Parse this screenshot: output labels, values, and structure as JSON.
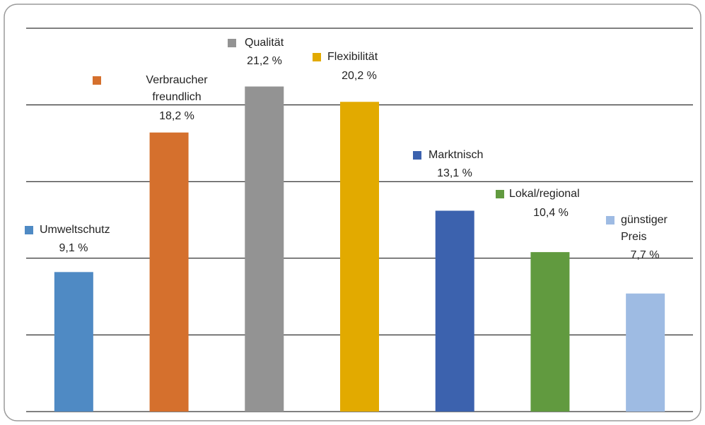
{
  "chart_data": {
    "type": "bar",
    "categories": [
      "Umweltschutz",
      "Verbraucher\nfreundlich",
      "Qualität",
      "Flexibilität",
      "Marktnisch",
      "Lokal/regional",
      "günstiger\nPreis"
    ],
    "values": [
      9.1,
      18.2,
      21.2,
      20.2,
      13.1,
      10.4,
      7.7
    ],
    "value_labels": [
      "9,1 %",
      "18,2 %",
      "21,2 %",
      "20,2 %",
      "13,1 %",
      "10,4 %",
      "7,7 %"
    ],
    "colors": [
      "#4f8ac4",
      "#d5702d",
      "#939393",
      "#e2aa00",
      "#3c62ae",
      "#619a3f",
      "#9ebbe3"
    ],
    "ylim": [
      0,
      25
    ],
    "yticks": [
      0,
      5,
      10,
      15,
      20,
      25
    ],
    "grid": true
  }
}
